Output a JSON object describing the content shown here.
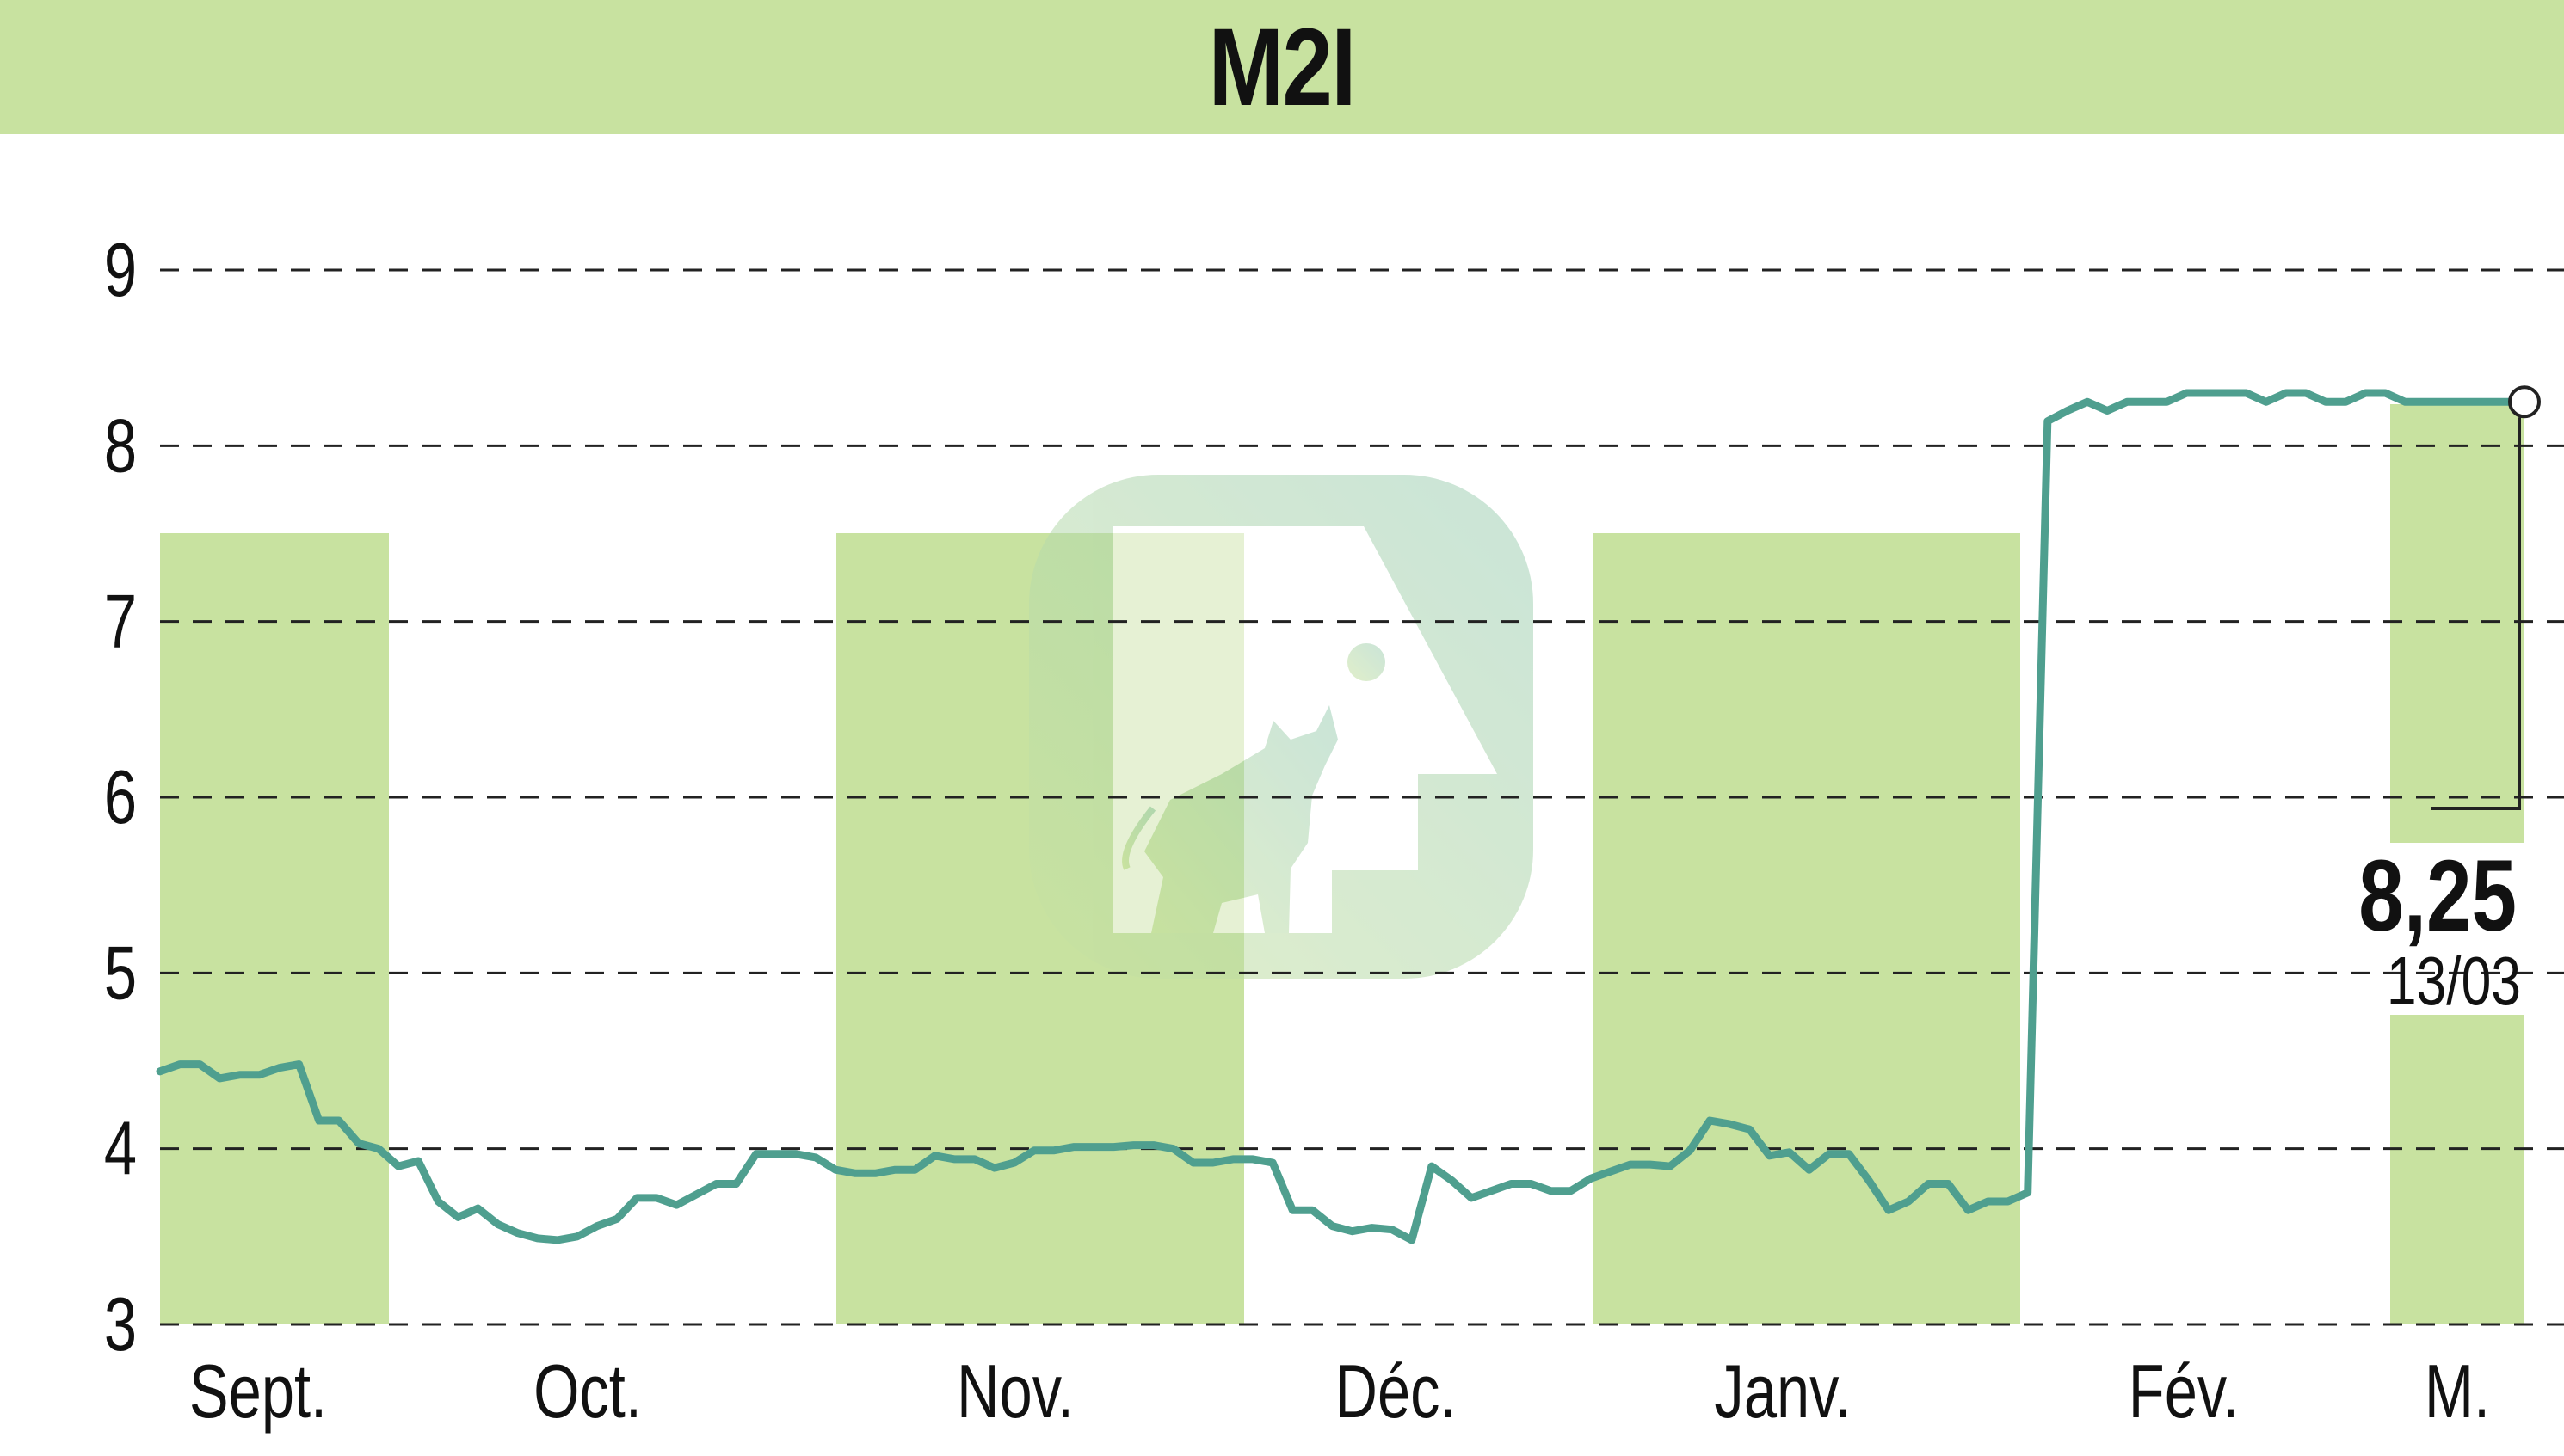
{
  "title": "M2I",
  "colors": {
    "header_bg": "#c8e2a0",
    "month_band": "#c8e2a0",
    "line": "#4f9f8f",
    "grid": "#222222",
    "text": "#111111"
  },
  "logo_icon": "bull-logo-watermark",
  "last_value": {
    "value_label": "8,25",
    "date_label": "13/03"
  },
  "chart_data": {
    "type": "line",
    "title": "M2I",
    "xlabel": "",
    "ylabel": "",
    "ylim": [
      3,
      9
    ],
    "yticks": [
      3,
      4,
      5,
      6,
      7,
      8,
      9
    ],
    "grid": true,
    "month_labels": [
      "Sept.",
      "Oct.",
      "Nov.",
      "Déc.",
      "Janv.",
      "Fév.",
      "M."
    ],
    "shaded_months": [
      "Sept.",
      "Nov.",
      "Janv.",
      "M."
    ],
    "series": [
      {
        "values": [
          4.44,
          4.48,
          4.48,
          4.4,
          4.42,
          4.42,
          4.46,
          4.48,
          4.16,
          4.16,
          4.03,
          4.0,
          3.9,
          3.93,
          3.7,
          3.61,
          3.66,
          3.57,
          3.52,
          3.49,
          3.48,
          3.5,
          3.56,
          3.6,
          3.72,
          3.72,
          3.68,
          3.74,
          3.8,
          3.8,
          3.97,
          3.97,
          3.97,
          3.95,
          3.88,
          3.86,
          3.86,
          3.88,
          3.88,
          3.96,
          3.94,
          3.94,
          3.89,
          3.92,
          3.99,
          3.99,
          4.01,
          4.01,
          4.01,
          4.02,
          4.02,
          4.0,
          3.92,
          3.92,
          3.94,
          3.94,
          3.92,
          3.65,
          3.65,
          3.56,
          3.53,
          3.55,
          3.54,
          3.48,
          3.9,
          3.82,
          3.72,
          3.76,
          3.8,
          3.8,
          3.76,
          3.76,
          3.83,
          3.87,
          3.91,
          3.91,
          3.9,
          3.99,
          4.16,
          4.14,
          4.11,
          3.96,
          3.98,
          3.88,
          3.97,
          3.97,
          3.82,
          3.65,
          3.7,
          3.8,
          3.8,
          3.65,
          3.7,
          3.7,
          3.75,
          8.14,
          8.2,
          8.25,
          8.2,
          8.25,
          8.25,
          8.25,
          8.3,
          8.3,
          8.3,
          8.3,
          8.25,
          8.3,
          8.3,
          8.25,
          8.25,
          8.3,
          8.3,
          8.25,
          8.25,
          8.25,
          8.25,
          8.25,
          8.25,
          8.25
        ]
      }
    ]
  }
}
